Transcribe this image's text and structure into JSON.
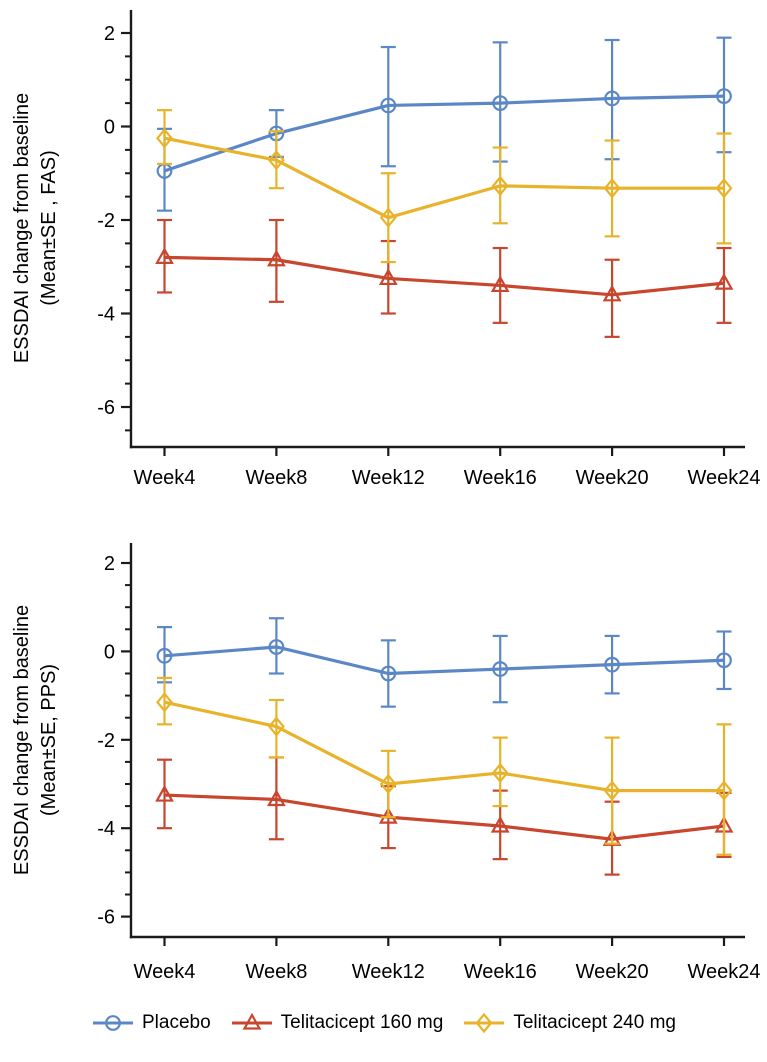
{
  "colors": {
    "axis": "#1a1a1a",
    "placebo_blue": "#5C87C7",
    "telitacicept160_red": "#C9462E",
    "telitacicept240_yellow": "#E8B32A"
  },
  "legend": {
    "items": [
      {
        "label": "Placebo",
        "marker": "circle",
        "color": "#5C87C7"
      },
      {
        "label": "Telitacicept 160 mg",
        "marker": "triangle",
        "color": "#C9462E"
      },
      {
        "label": "Telitacicept 240 mg",
        "marker": "diamond",
        "color": "#E8B32A"
      }
    ]
  },
  "chart_data": [
    {
      "type": "line",
      "panel": "FAS",
      "ylabel_lines": [
        "ESSDAI change from baseline",
        "(Mean±SE , FAS)"
      ],
      "categories": [
        "Week4",
        "Week8",
        "Week12",
        "Week16",
        "Week20",
        "Week24"
      ],
      "x": [
        4,
        8,
        12,
        16,
        20,
        24
      ],
      "y_axis": {
        "major_ticks": [
          2,
          0,
          -2,
          -4,
          -6
        ],
        "minor_step": 0.5,
        "range": [
          -6.9,
          2.5
        ]
      },
      "error_bars": "±SE",
      "legend_position": "bottom",
      "grid": false,
      "series": [
        {
          "name": "Placebo",
          "marker": "circle",
          "color": "#5C87C7",
          "mean": [
            -0.95,
            -0.15,
            0.45,
            0.5,
            0.6,
            0.65
          ],
          "lower": [
            -1.8,
            -0.65,
            -0.85,
            -0.75,
            -0.7,
            -0.55
          ],
          "upper": [
            -0.05,
            0.35,
            1.7,
            1.8,
            1.85,
            1.9
          ]
        },
        {
          "name": "Telitacicept 160 mg",
          "marker": "triangle",
          "color": "#C9462E",
          "mean": [
            -2.8,
            -2.85,
            -3.25,
            -3.4,
            -3.6,
            -3.35
          ],
          "lower": [
            -3.55,
            -3.75,
            -4.0,
            -4.2,
            -4.5,
            -4.2
          ],
          "upper": [
            -2.0,
            -2.0,
            -2.45,
            -2.6,
            -2.85,
            -2.6
          ]
        },
        {
          "name": "Telitacicept 240 mg",
          "marker": "diamond",
          "color": "#E8B32A",
          "mean": [
            -0.25,
            -0.72,
            -1.95,
            -1.27,
            -1.32,
            -1.32
          ],
          "lower": [
            -0.8,
            -1.32,
            -2.9,
            -2.07,
            -2.35,
            -2.5
          ],
          "upper": [
            0.35,
            -0.1,
            -1.0,
            -0.45,
            -0.3,
            -0.15
          ]
        }
      ]
    },
    {
      "type": "line",
      "panel": "PPS",
      "ylabel_lines": [
        "ESSDAI change from baseline",
        "(Mean±SE, PPS)"
      ],
      "categories": [
        "Week4",
        "Week8",
        "Week12",
        "Week16",
        "Week20",
        "Week24"
      ],
      "x": [
        4,
        8,
        12,
        16,
        20,
        24
      ],
      "y_axis": {
        "major_ticks": [
          2,
          0,
          -2,
          -4,
          -6
        ],
        "minor_step": 0.5,
        "range": [
          -6.5,
          2.45
        ]
      },
      "error_bars": "±SE",
      "legend_position": "bottom",
      "grid": false,
      "series": [
        {
          "name": "Placebo",
          "marker": "circle",
          "color": "#5C87C7",
          "mean": [
            -0.1,
            0.1,
            -0.5,
            -0.4,
            -0.3,
            -0.2
          ],
          "lower": [
            -0.7,
            -0.5,
            -1.25,
            -1.15,
            -0.95,
            -0.85
          ],
          "upper": [
            0.55,
            0.75,
            0.25,
            0.35,
            0.35,
            0.45
          ]
        },
        {
          "name": "Telitacicept 160 mg",
          "marker": "triangle",
          "color": "#C9462E",
          "mean": [
            -3.25,
            -3.35,
            -3.75,
            -3.95,
            -4.25,
            -3.95
          ],
          "lower": [
            -4.0,
            -4.25,
            -4.45,
            -4.7,
            -5.05,
            -4.65
          ],
          "upper": [
            -2.45,
            -2.4,
            -3.05,
            -3.15,
            -3.4,
            -3.2
          ]
        },
        {
          "name": "Telitacicept 240 mg",
          "marker": "diamond",
          "color": "#E8B32A",
          "mean": [
            -1.15,
            -1.7,
            -3.0,
            -2.75,
            -3.15,
            -3.15
          ],
          "lower": [
            -1.65,
            -2.4,
            -3.75,
            -3.5,
            -4.35,
            -4.6
          ],
          "upper": [
            -0.6,
            -1.1,
            -2.25,
            -1.95,
            -1.95,
            -1.65
          ]
        }
      ]
    }
  ]
}
